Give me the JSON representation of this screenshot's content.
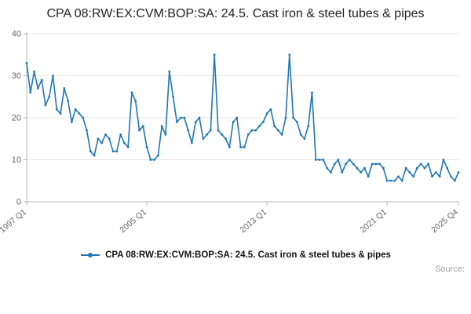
{
  "page": {
    "title": "CPA 08:RW:EX:CVM:BOP:SA: 24.5. Cast iron & steel tubes & pipes",
    "source_label": "Source:"
  },
  "legend": {
    "label": "CPA 08:RW:EX:CVM:BOP:SA: 24.5. Cast iron & steel tubes & pipes"
  },
  "chart_data": {
    "type": "line",
    "title": "CPA 08:RW:EX:CVM:BOP:SA: 24.5. Cast iron & steel tubes & pipes",
    "xlabel": "",
    "ylabel": "",
    "x_start": "1997 Q1",
    "x_end": "2025 Q4",
    "frequency": "quarterly",
    "ylim": [
      0,
      40
    ],
    "y_ticks": [
      0,
      10,
      20,
      30,
      40
    ],
    "x_tick_labels": [
      {
        "label": "1997 Q1",
        "index": 0
      },
      {
        "label": "2005 Q1",
        "index": 32
      },
      {
        "label": "2013 Q1",
        "index": 64
      },
      {
        "label": "2021 Q1",
        "index": 96
      },
      {
        "label": "2025 Q4",
        "index": 115
      }
    ],
    "grid": true,
    "legend_position": "bottom",
    "line_color": "#1f77b4",
    "axis_color": "#b3b3b3",
    "grid_color": "#e8e8e8",
    "tick_label_color": "#666666",
    "values": [
      33,
      26,
      31,
      27,
      29,
      23,
      25,
      30,
      22,
      21,
      27,
      24,
      19,
      22,
      21,
      20,
      17,
      12,
      11,
      15,
      14,
      16,
      15,
      12,
      12,
      16,
      14,
      13,
      26,
      24,
      17,
      18,
      13,
      10,
      10,
      11,
      18,
      16,
      31,
      25,
      19,
      20,
      20,
      17,
      14,
      19,
      20,
      15,
      16,
      17,
      35,
      17,
      16,
      15,
      13,
      19,
      20,
      13,
      13,
      16,
      17,
      17,
      18,
      19,
      21,
      22,
      18,
      17,
      16,
      20,
      35,
      20,
      19,
      16,
      15,
      18,
      26,
      10,
      10,
      10,
      8,
      7,
      9,
      10,
      7,
      9,
      10,
      9,
      8,
      7,
      8,
      6,
      9,
      9,
      9,
      8,
      5,
      5,
      5,
      6,
      5,
      8,
      7,
      6,
      8,
      9,
      8,
      9,
      6,
      7,
      6,
      10,
      8,
      6,
      5,
      7
    ]
  }
}
